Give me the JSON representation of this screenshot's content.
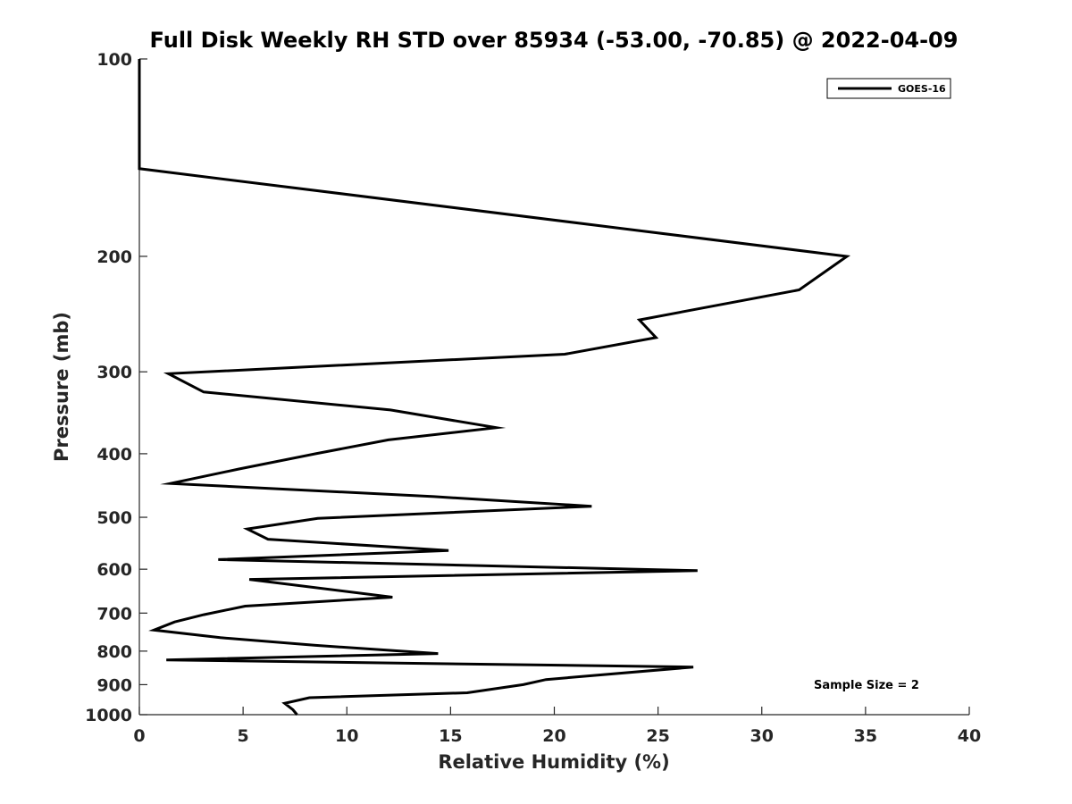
{
  "chart_data": {
    "type": "line",
    "title": "Full Disk Weekly RH STD over 85934 (-53.00, -70.85) @ 2022-04-09",
    "xlabel": "Relative Humidity (%)",
    "ylabel": "Pressure (mb)",
    "xlim": [
      0,
      40
    ],
    "ylim": [
      1000,
      100
    ],
    "yscale": "log",
    "x_ticks": [
      0,
      5,
      10,
      15,
      20,
      25,
      30,
      35,
      40
    ],
    "y_ticks": [
      100,
      200,
      300,
      400,
      500,
      600,
      700,
      800,
      900,
      1000
    ],
    "grid": false,
    "legend_position": "top-right",
    "annotation": "Sample Size = 2",
    "series": [
      {
        "name": "GOES-16",
        "color": "#000000",
        "points": [
          [
            0.0,
            100
          ],
          [
            0.0,
            147
          ],
          [
            34.1,
            200
          ],
          [
            31.8,
            225
          ],
          [
            24.1,
            250
          ],
          [
            24.9,
            266
          ],
          [
            20.5,
            282
          ],
          [
            1.4,
            302
          ],
          [
            3.1,
            322
          ],
          [
            12.1,
            343
          ],
          [
            17.2,
            365
          ],
          [
            12.0,
            381
          ],
          [
            8.5,
            400
          ],
          [
            4.8,
            422
          ],
          [
            1.5,
            444
          ],
          [
            14.2,
            465
          ],
          [
            21.8,
            481
          ],
          [
            8.6,
            502
          ],
          [
            5.2,
            521
          ],
          [
            6.2,
            540
          ],
          [
            14.9,
            562
          ],
          [
            3.8,
            580
          ],
          [
            26.9,
            603
          ],
          [
            5.3,
            622
          ],
          [
            12.2,
            662
          ],
          [
            5.1,
            683
          ],
          [
            3.1,
            704
          ],
          [
            1.7,
            722
          ],
          [
            0.7,
            743
          ],
          [
            3.9,
            763
          ],
          [
            8.5,
            784
          ],
          [
            14.4,
            807
          ],
          [
            1.3,
            825
          ],
          [
            26.7,
            846
          ],
          [
            19.6,
            884
          ],
          [
            18.5,
            900
          ],
          [
            15.8,
            926
          ],
          [
            8.2,
            942
          ],
          [
            7.0,
            961
          ],
          [
            7.4,
            983
          ],
          [
            7.6,
            1000
          ]
        ]
      }
    ]
  }
}
